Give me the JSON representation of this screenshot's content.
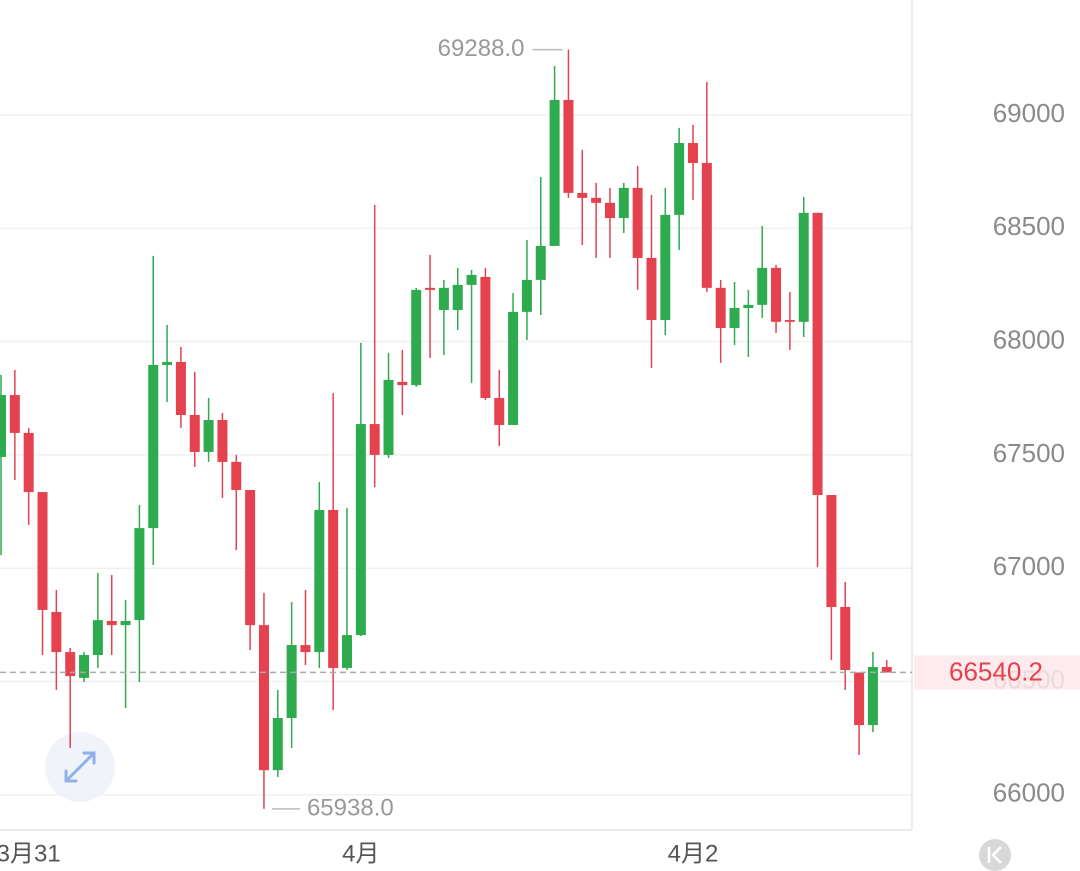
{
  "chart_data": {
    "type": "candlestick",
    "categories": [
      null,
      null,
      "3月31",
      null,
      null,
      null,
      null,
      null,
      null,
      null,
      null,
      null,
      null,
      null,
      null,
      null,
      null,
      null,
      null,
      null,
      null,
      null,
      null,
      null,
      null,
      null,
      "4月",
      null,
      null,
      null,
      null,
      null,
      null,
      null,
      null,
      null,
      null,
      null,
      null,
      null,
      null,
      null,
      null,
      null,
      null,
      null,
      null,
      null,
      null,
      null,
      "4月2",
      null,
      null,
      null,
      null,
      null,
      null,
      null,
      null,
      null,
      null,
      null,
      null,
      null,
      null
    ],
    "open": [
      67491,
      67764,
      67597,
      67336,
      66807,
      66630,
      66516,
      66617,
      66767,
      66749,
      66771,
      67177,
      67897,
      67910,
      67676,
      67513,
      67654,
      67469,
      67345,
      66749,
      66109,
      66339,
      66661,
      66630,
      67257,
      66560,
      66705,
      67636,
      67500,
      67822,
      67808,
      68237,
      68139,
      68139,
      68250,
      68285,
      67751,
      67632,
      68131,
      68272,
      68422,
      69066,
      68656,
      68634,
      68612,
      68545,
      68678,
      68369,
      68095,
      68559,
      68876,
      68788,
      68237,
      68060,
      68148,
      68162,
      68325,
      68095,
      68087,
      68568,
      67323,
      66829,
      66540,
      66308,
      66564
    ],
    "high": [
      67853,
      67875,
      67619,
      67336,
      66904,
      66648,
      66630,
      66979,
      66970,
      66860,
      67279,
      68378,
      68073,
      67976,
      67866,
      67751,
      67685,
      67500,
      67345,
      66891,
      66463,
      66851,
      66904,
      67380,
      67773,
      67266,
      67994,
      68603,
      67950,
      67963,
      68237,
      68382,
      68272,
      68325,
      68316,
      68325,
      67875,
      68214,
      68448,
      68726,
      69216,
      69288,
      68846,
      68700,
      68678,
      68700,
      68775,
      68647,
      68678,
      68943,
      68956,
      69146,
      68272,
      68263,
      68228,
      68510,
      68338,
      68219,
      68638,
      68568,
      67323,
      66939,
      66540,
      66630,
      66595
    ],
    "low": [
      67058,
      67389,
      67191,
      66617,
      66463,
      66207,
      66498,
      66560,
      66617,
      66383,
      66498,
      67014,
      67733,
      67619,
      67447,
      67469,
      67310,
      67080,
      66639,
      65938,
      66079,
      66207,
      66573,
      66560,
      66374,
      66551,
      66701,
      67358,
      67486,
      67676,
      67800,
      67928,
      67941,
      68051,
      67817,
      67742,
      67539,
      67632,
      68007,
      68117,
      68422,
      68634,
      68426,
      68369,
      68369,
      68479,
      68228,
      67884,
      68029,
      68404,
      68625,
      68219,
      67906,
      67985,
      67932,
      68104,
      68038,
      67963,
      68020,
      67005,
      66595,
      66463,
      66176,
      66277,
      66540
    ],
    "close": [
      67764,
      67597,
      67336,
      66816,
      66630,
      66524,
      66617,
      66771,
      66749,
      66767,
      67177,
      67897,
      67910,
      67676,
      67513,
      67654,
      67469,
      67345,
      66749,
      66109,
      66339,
      66661,
      66630,
      67257,
      66560,
      66705,
      67636,
      67500,
      67831,
      67808,
      68228,
      68228,
      68237,
      68250,
      68294,
      67751,
      67632,
      68131,
      68272,
      68422,
      69066,
      68656,
      68634,
      68612,
      68545,
      68678,
      68369,
      68095,
      68559,
      68876,
      68788,
      68237,
      68060,
      68148,
      68162,
      68325,
      68087,
      68087,
      68568,
      67323,
      66829,
      66551,
      66308,
      66564,
      66540.2
    ],
    "up_color": "#2eab4e",
    "down_color": "#e5424f",
    "ylim": [
      65845,
      69507
    ],
    "yticks": [
      66000,
      66500,
      67000,
      67500,
      68000,
      68500,
      69000
    ],
    "grid": true,
    "last_price": 66540.2,
    "annotations": [
      {
        "value": 69288,
        "label": "69288.0"
      },
      {
        "value": 65938,
        "label": "65938.0"
      }
    ]
  }
}
